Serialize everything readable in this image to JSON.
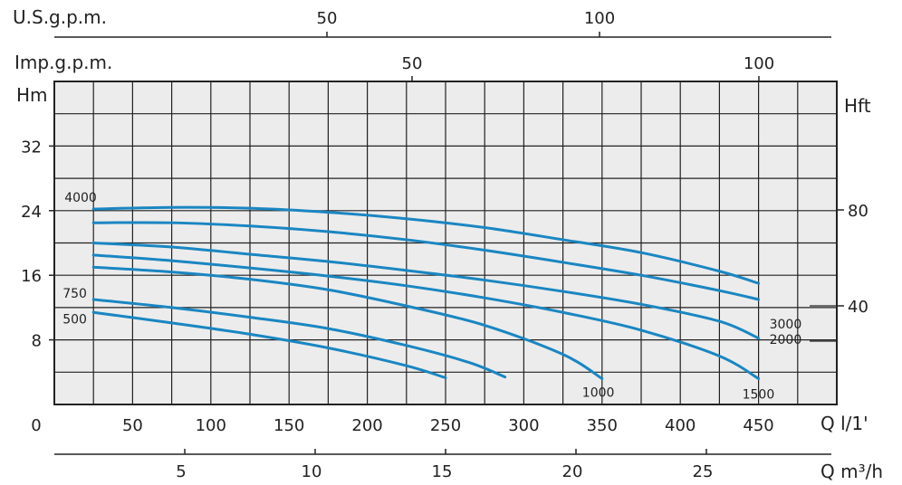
{
  "chart_data": {
    "type": "line",
    "title": "",
    "colors": {
      "curve": "#1a86c2",
      "grid": "#222222",
      "background": "#ececec"
    },
    "grid": true,
    "x": {
      "label": "Q l/1'",
      "range": [
        0,
        500
      ],
      "ticks": [
        0,
        50,
        100,
        150,
        200,
        250,
        300,
        350,
        400,
        450
      ],
      "tick_labels": [
        "0",
        "50",
        "100",
        "150",
        "200",
        "250",
        "300",
        "350",
        "400",
        "450"
      ]
    },
    "y": {
      "label": "Hm",
      "range": [
        0,
        40
      ],
      "ticks": [
        8,
        16,
        24,
        32
      ],
      "tick_labels": [
        "8",
        "16",
        "24",
        "32"
      ]
    },
    "y_right": {
      "label": "Hft",
      "ticks": [
        40,
        80
      ],
      "tick_labels": [
        "40",
        "80"
      ]
    },
    "x_top_us": {
      "label": "U.S.g.p.m.",
      "ticks": [
        50,
        100
      ],
      "tick_labels": [
        "50",
        "100"
      ]
    },
    "x_top_imp": {
      "label": "Imp.g.p.m.",
      "ticks": [
        50,
        100
      ],
      "tick_labels": [
        "50",
        "100"
      ]
    },
    "x_bottom_m3h": {
      "label": "Q m³/h",
      "ticks": [
        5,
        10,
        15,
        20,
        25
      ],
      "tick_labels": [
        "5",
        "10",
        "15",
        "20",
        "25"
      ]
    },
    "series": [
      {
        "name": "4000",
        "x": [
          25,
          75,
          125,
          175,
          225,
          275,
          325,
          375,
          425,
          450
        ],
        "y": [
          24.2,
          24.4,
          24.3,
          23.8,
          23.0,
          21.9,
          20.4,
          18.8,
          16.5,
          15.0
        ]
      },
      {
        "name": "3000",
        "x": [
          25,
          75,
          125,
          175,
          225,
          275,
          325,
          375,
          425,
          450
        ],
        "y": [
          22.5,
          22.5,
          22.1,
          21.4,
          20.4,
          19.1,
          17.6,
          16.0,
          14.1,
          13.0
        ]
      },
      {
        "name": "2000",
        "x": [
          25,
          75,
          125,
          175,
          225,
          275,
          325,
          375,
          425,
          450
        ],
        "y": [
          20.0,
          19.5,
          18.6,
          17.7,
          16.6,
          15.4,
          14.0,
          12.4,
          10.3,
          8.2
        ]
      },
      {
        "name": "1500",
        "x": [
          25,
          75,
          125,
          175,
          225,
          275,
          325,
          375,
          425,
          450
        ],
        "y": [
          18.5,
          17.8,
          16.9,
          15.9,
          14.7,
          13.2,
          11.4,
          9.2,
          6.0,
          3.2
        ]
      },
      {
        "name": "1000",
        "x": [
          25,
          75,
          125,
          175,
          225,
          275,
          325,
          350
        ],
        "y": [
          17.0,
          16.4,
          15.5,
          14.2,
          12.2,
          9.8,
          6.2,
          3.2
        ]
      },
      {
        "name": "750",
        "x": [
          25,
          75,
          125,
          175,
          225,
          265,
          288
        ],
        "y": [
          13.0,
          12.0,
          10.8,
          9.4,
          7.3,
          5.2,
          3.4
        ]
      },
      {
        "name": "500",
        "x": [
          25,
          75,
          125,
          175,
          225,
          250
        ],
        "y": [
          11.4,
          10.1,
          8.7,
          7.0,
          4.8,
          3.3
        ]
      }
    ]
  }
}
